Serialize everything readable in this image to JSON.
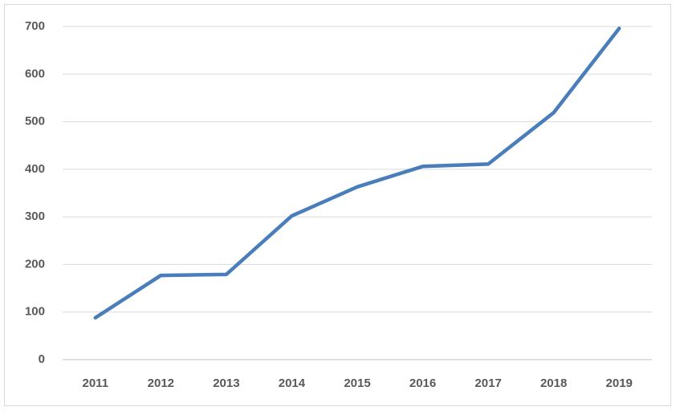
{
  "chart_data": {
    "type": "line",
    "categories": [
      "2011",
      "2012",
      "2013",
      "2014",
      "2015",
      "2016",
      "2017",
      "2018",
      "2019"
    ],
    "values": [
      88,
      177,
      179,
      302,
      363,
      406,
      411,
      519,
      696
    ],
    "color": "#4a7ebb",
    "ylim": [
      0,
      700
    ],
    "yticks": [
      0,
      100,
      200,
      300,
      400,
      500,
      600,
      700
    ],
    "grid": true
  }
}
